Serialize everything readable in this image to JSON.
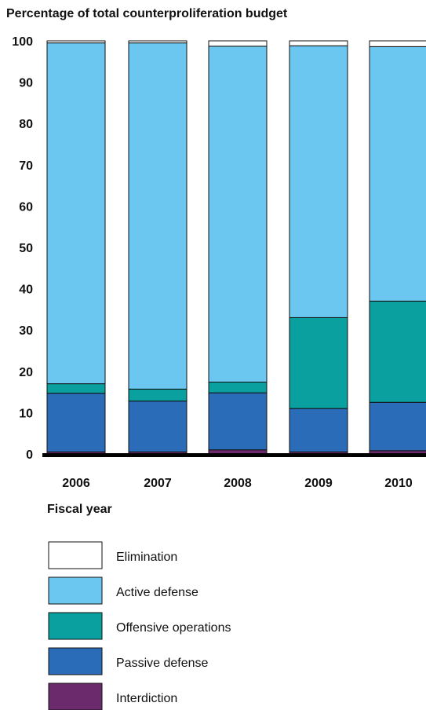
{
  "chart_data": {
    "type": "bar",
    "stacked": true,
    "title": "Percentage of total counterproliferation budget",
    "xlabel": "Fiscal year",
    "ylabel": "",
    "ylim": [
      0,
      100
    ],
    "yticks": [
      "0",
      "10",
      "20",
      "30",
      "40",
      "50",
      "60",
      "70",
      "80",
      "90",
      "100"
    ],
    "categories": [
      "2006",
      "2007",
      "2008",
      "2009",
      "2010"
    ],
    "series": [
      {
        "name": "Interdiction",
        "color": "#6b2a6b",
        "values": [
          0.5,
          0.5,
          1.0,
          0.5,
          0.8
        ]
      },
      {
        "name": "Passive defense",
        "color": "#2b6cb8",
        "values": [
          14.2,
          12.3,
          13.8,
          10.5,
          11.7
        ]
      },
      {
        "name": "Offensive operations",
        "color": "#0aa0a0",
        "values": [
          2.3,
          2.9,
          2.6,
          22.0,
          24.5
        ]
      },
      {
        "name": "Active defense",
        "color": "#6cc7f0",
        "values": [
          82.5,
          83.8,
          81.3,
          65.8,
          61.6
        ]
      },
      {
        "name": "Elimination",
        "color": "#ffffff",
        "values": [
          0.5,
          0.5,
          1.3,
          1.2,
          1.4
        ]
      }
    ],
    "legend": {
      "position": "bottom",
      "order": [
        "Elimination",
        "Active defense",
        "Offensive operations",
        "Passive defense",
        "Interdiction"
      ]
    },
    "grid": false
  }
}
